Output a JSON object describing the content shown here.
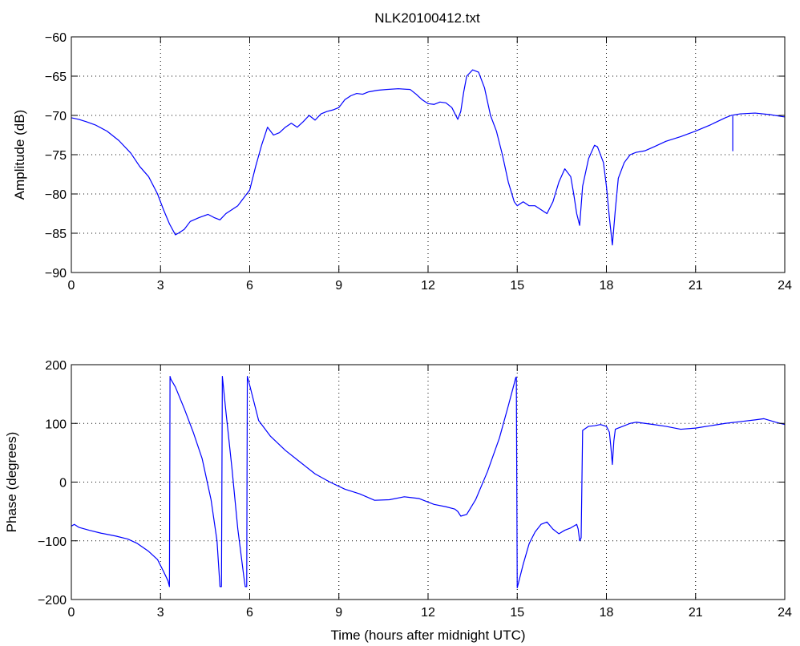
{
  "figure": {
    "title": "NLK20100412.txt"
  },
  "chart_data": [
    {
      "type": "line",
      "title": "NLK20100412.txt",
      "xlabel": "",
      "ylabel": "Amplitude (dB)",
      "xlim": [
        0,
        24
      ],
      "ylim": [
        -90,
        -60
      ],
      "xticks": [
        0,
        3,
        6,
        9,
        12,
        15,
        18,
        21,
        24
      ],
      "xtick_labels": [
        "0",
        "3",
        "6",
        "9",
        "12",
        "15",
        "18",
        "21",
        "24"
      ],
      "yticks": [
        -90,
        -85,
        -80,
        -75,
        -70,
        -65,
        -60
      ],
      "ytick_labels": [
        "−90",
        "−85",
        "−80",
        "−75",
        "−70",
        "−65",
        "−60"
      ],
      "grid": true,
      "line_color": "#0000ff",
      "series": [
        {
          "x": [
            0,
            0.25,
            0.5,
            0.8,
            1.2,
            1.6,
            2.0,
            2.3,
            2.6,
            2.9,
            3.1,
            3.3,
            3.5,
            3.6,
            3.8,
            4.0,
            4.3,
            4.6,
            4.8,
            5.0,
            5.2,
            5.4,
            5.6,
            5.8,
            6.0,
            6.2,
            6.4,
            6.6,
            6.8,
            7.0,
            7.2,
            7.4,
            7.6,
            7.8,
            8.0,
            8.2,
            8.4,
            8.6,
            8.8,
            9.0,
            9.2,
            9.4,
            9.6,
            9.8,
            10.0,
            10.3,
            10.6,
            11.0,
            11.4,
            11.6,
            11.8,
            12.0,
            12.2,
            12.4,
            12.6,
            12.8,
            13.0,
            13.1,
            13.2,
            13.3,
            13.5,
            13.7,
            13.9,
            14.1,
            14.3,
            14.5,
            14.7,
            14.9,
            15.0,
            15.2,
            15.4,
            15.6,
            15.8,
            16.0,
            16.2,
            16.4,
            16.6,
            16.8,
            16.9,
            17.0,
            17.1,
            17.2,
            17.4,
            17.6,
            17.7,
            17.9,
            18.0,
            18.1,
            18.2,
            18.3,
            18.4,
            18.6,
            18.8,
            19.0,
            19.3,
            19.6,
            20.0,
            20.5,
            21.0,
            21.5,
            22.0,
            22.2,
            22.5,
            23.0,
            23.5,
            24.0
          ],
          "y": [
            -70.3,
            -70.5,
            -70.8,
            -71.2,
            -72.0,
            -73.2,
            -74.8,
            -76.5,
            -77.8,
            -80.0,
            -82.0,
            -83.8,
            -85.2,
            -85.0,
            -84.5,
            -83.5,
            -83.0,
            -82.6,
            -83.0,
            -83.3,
            -82.5,
            -82.0,
            -81.5,
            -80.5,
            -79.5,
            -76.5,
            -73.8,
            -71.5,
            -72.5,
            -72.2,
            -71.5,
            -71.0,
            -71.5,
            -70.8,
            -70.0,
            -70.6,
            -69.8,
            -69.5,
            -69.3,
            -69.0,
            -68.0,
            -67.5,
            -67.2,
            -67.3,
            -67.0,
            -66.8,
            -66.7,
            -66.6,
            -66.7,
            -67.3,
            -68.0,
            -68.5,
            -68.6,
            -68.3,
            -68.4,
            -69.0,
            -70.5,
            -69.5,
            -67.0,
            -65.0,
            -64.2,
            -64.5,
            -66.5,
            -70.0,
            -72.0,
            -75.0,
            -78.5,
            -81.0,
            -81.5,
            -81.0,
            -81.5,
            -81.5,
            -82.0,
            -82.5,
            -81.0,
            -78.5,
            -76.8,
            -77.8,
            -80.0,
            -82.5,
            -84.0,
            -79.0,
            -75.5,
            -73.8,
            -74.0,
            -76.0,
            -79.0,
            -83.0,
            -86.5,
            -82.0,
            -78.0,
            -76.0,
            -75.0,
            -74.7,
            -74.5,
            -74.0,
            -73.3,
            -72.7,
            -72.0,
            -71.2,
            -70.3,
            -70.0,
            -69.8,
            -69.7,
            -69.9,
            -70.2
          ]
        },
        {
          "x": [
            22.25,
            22.25,
            22.25
          ],
          "y": [
            -70.1,
            -74.5,
            -70.1
          ]
        }
      ]
    },
    {
      "type": "line",
      "title": "",
      "xlabel": "Time (hours after midnight UTC)",
      "ylabel": "Phase (degrees)",
      "xlim": [
        0,
        24
      ],
      "ylim": [
        -200,
        200
      ],
      "xticks": [
        0,
        3,
        6,
        9,
        12,
        15,
        18,
        21,
        24
      ],
      "xtick_labels": [
        "0",
        "3",
        "6",
        "9",
        "12",
        "15",
        "18",
        "21",
        "24"
      ],
      "yticks": [
        -200,
        -100,
        0,
        100,
        200
      ],
      "ytick_labels": [
        "−200",
        "−100",
        "0",
        "100",
        "200"
      ],
      "grid": true,
      "line_color": "#0000ff",
      "series": [
        {
          "x": [
            0,
            0.1,
            0.25,
            0.6,
            1.0,
            1.5,
            1.9,
            2.2,
            2.6,
            2.9,
            3.1,
            3.25,
            3.3,
            3.32,
            3.35,
            3.5,
            3.8,
            4.1,
            4.4,
            4.7,
            4.9,
            5.0,
            5.05,
            5.08,
            5.1,
            5.2,
            5.4,
            5.6,
            5.8,
            5.85,
            5.9,
            5.92,
            6.0,
            6.3,
            6.7,
            7.2,
            7.7,
            8.2,
            8.7,
            9.2,
            9.7,
            10.2,
            10.7,
            11.2,
            11.7,
            12.2,
            12.6,
            12.9,
            13.0,
            13.1,
            13.3,
            13.6,
            14.0,
            14.4,
            14.7,
            14.9,
            14.95,
            14.97,
            15.0,
            15.2,
            15.4,
            15.6,
            15.8,
            16.0,
            16.2,
            16.4,
            16.6,
            16.8,
            17.0,
            17.05,
            17.1,
            17.15,
            17.2,
            17.4,
            17.6,
            17.8,
            18.0,
            18.1,
            18.15,
            18.2,
            18.25,
            18.3,
            18.4,
            18.6,
            18.8,
            19.0,
            19.3,
            19.6,
            20.0,
            20.5,
            21.0,
            21.5,
            22.0,
            22.5,
            23.0,
            23.3,
            23.7,
            24.0
          ],
          "y": [
            -75,
            -72,
            -77,
            -82,
            -87,
            -92,
            -97,
            -104,
            -118,
            -132,
            -152,
            -168,
            -178,
            180,
            175,
            162,
            125,
            85,
            40,
            -30,
            -100,
            -178,
            -178,
            180,
            170,
            120,
            25,
            -80,
            -160,
            -178,
            -178,
            180,
            165,
            105,
            78,
            54,
            34,
            14,
            0,
            -12,
            -20,
            -31,
            -30,
            -25,
            -28,
            -38,
            -42,
            -46,
            -50,
            -58,
            -55,
            -30,
            18,
            75,
            130,
            168,
            178,
            179,
            -180,
            -140,
            -105,
            -85,
            -72,
            -68,
            -80,
            -88,
            -82,
            -78,
            -72,
            -80,
            -100,
            -95,
            88,
            95,
            96,
            98,
            95,
            85,
            60,
            30,
            70,
            90,
            92,
            96,
            100,
            102,
            100,
            98,
            95,
            90,
            92,
            96,
            100,
            103,
            106,
            108,
            102,
            98
          ]
        }
      ]
    }
  ]
}
